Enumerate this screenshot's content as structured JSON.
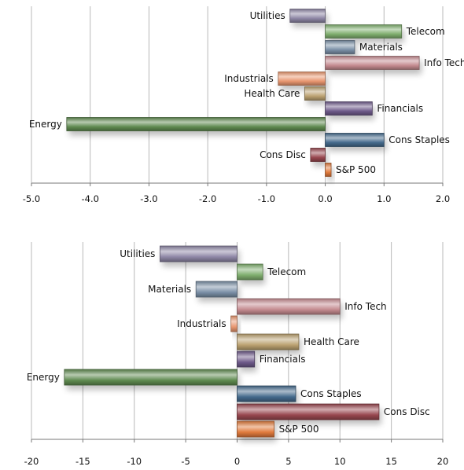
{
  "chart_data": [
    {
      "type": "bar",
      "orientation": "horizontal",
      "categories": [
        "Utilities",
        "Telecom",
        "Materials",
        "Info Tech",
        "Industrials",
        "Health Care",
        "Financials",
        "Energy",
        "Cons Staples",
        "Cons Disc",
        "S&P 500"
      ],
      "values": [
        -0.6,
        1.3,
        0.5,
        1.6,
        -0.8,
        -0.35,
        0.8,
        -4.4,
        1.0,
        -0.25,
        0.1
      ],
      "xlim": [
        -5.0,
        2.0
      ],
      "xticks": [
        "-5.0",
        "-4.0",
        "-3.0",
        "-2.0",
        "-1.0",
        "0.0",
        "1.0",
        "2.0"
      ],
      "grid": "vertical",
      "title": "",
      "xlabel": "",
      "ylabel": ""
    },
    {
      "type": "bar",
      "orientation": "horizontal",
      "categories": [
        "Utilities",
        "Telecom",
        "Materials",
        "Info Tech",
        "Industrials",
        "Health Care",
        "Financials",
        "Energy",
        "Cons Staples",
        "Cons Disc",
        "S&P 500"
      ],
      "values": [
        -7.5,
        2.5,
        -4.0,
        10.0,
        -0.6,
        6.0,
        1.7,
        -16.8,
        5.7,
        13.8,
        3.6
      ],
      "xlim": [
        -20,
        20
      ],
      "xticks": [
        "-20",
        "-15",
        "-10",
        "-5",
        "0",
        "5",
        "10",
        "15",
        "20"
      ],
      "grid": "vertical",
      "title": "",
      "xlabel": "",
      "ylabel": ""
    }
  ],
  "colors": {
    "Utilities": "#8e86a5",
    "Telecom": "#7fae6e",
    "Materials": "#7a8fa6",
    "Info Tech": "#c48a8f",
    "Industrials": "#e8966f",
    "Health Care": "#bba170",
    "Financials": "#6e5a8a",
    "Energy": "#5f8a50",
    "Cons Staples": "#446a8c",
    "Cons Disc": "#98474f",
    "S&P 500": "#e07a3c"
  }
}
